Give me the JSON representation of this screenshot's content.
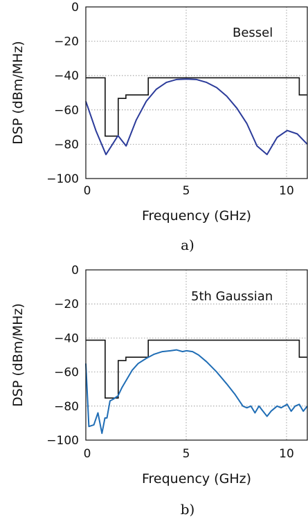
{
  "colors": {
    "bessel": "#2b3b9a",
    "gaussian": "#1f6db5",
    "mask": "#111111"
  },
  "chart_data": [
    {
      "type": "line",
      "caption": "a)",
      "annotation": "Bessel",
      "xlabel": "Frequency (GHz)",
      "ylabel": "DSP (dBm/MHz)",
      "xlim": [
        0,
        11
      ],
      "ylim": [
        -100,
        0
      ],
      "xticks": [
        0,
        5,
        10
      ],
      "xtick_labels": [
        "0",
        "5",
        "10"
      ],
      "yticks": [
        0,
        -20,
        -40,
        -60,
        -80,
        -100
      ],
      "ytick_labels": [
        "0",
        "−20",
        "−40",
        "−60",
        "−80",
        "−100"
      ],
      "grid": true,
      "series": [
        {
          "key": "mask",
          "x": [
            0,
            0.96,
            0.96,
            1.61,
            1.61,
            1.99,
            1.99,
            3.1,
            3.1,
            10.6,
            10.6,
            10.98
          ],
          "y": [
            -41.3,
            -41.3,
            -75.3,
            -75.3,
            -53.3,
            -53.3,
            -51.3,
            -51.3,
            -41.3,
            -41.3,
            -51.3,
            -51.3
          ]
        },
        {
          "key": "bessel",
          "x": [
            0,
            0.5,
            1.0,
            1.6,
            2.0,
            2.5,
            3.0,
            3.5,
            4.0,
            4.5,
            5.0,
            5.5,
            6.0,
            6.5,
            7.0,
            7.5,
            8.0,
            8.5,
            9.0,
            9.5,
            10.0,
            10.5,
            11.0
          ],
          "y": [
            -55,
            -72,
            -86,
            -75,
            -81,
            -66,
            -55,
            -48,
            -44,
            -42.3,
            -42,
            -42.3,
            -44,
            -47,
            -52,
            -59,
            -68,
            -81,
            -86,
            -76,
            -72,
            -74,
            -80
          ]
        }
      ]
    },
    {
      "type": "line",
      "caption": "b)",
      "annotation": "5th Gaussian",
      "xlabel": "Frequency (GHz)",
      "ylabel": "DSP (dBm/MHz)",
      "xlim": [
        0,
        11
      ],
      "ylim": [
        -100,
        0
      ],
      "xticks": [
        0,
        5,
        10
      ],
      "xtick_labels": [
        "0",
        "5",
        "10"
      ],
      "yticks": [
        0,
        -20,
        -40,
        -60,
        -80,
        -100
      ],
      "ytick_labels": [
        "0",
        "−20",
        "−40",
        "−60",
        "−80",
        "−100"
      ],
      "grid": true,
      "series": [
        {
          "key": "mask",
          "x": [
            0,
            0.96,
            0.96,
            1.61,
            1.61,
            1.99,
            1.99,
            3.1,
            3.1,
            10.6,
            10.6,
            10.98
          ],
          "y": [
            -41.3,
            -41.3,
            -75.3,
            -75.3,
            -53.3,
            -53.3,
            -51.3,
            -51.3,
            -41.3,
            -41.3,
            -51.3,
            -51.3
          ]
        },
        {
          "key": "gaussian",
          "x": [
            0,
            0.15,
            0.4,
            0.6,
            0.8,
            0.95,
            1.05,
            1.2,
            1.35,
            1.6,
            1.8,
            2.0,
            2.3,
            2.6,
            3.0,
            3.4,
            3.8,
            4.2,
            4.5,
            4.8,
            5.0,
            5.3,
            5.6,
            6.0,
            6.5,
            7.0,
            7.4,
            7.8,
            8.0,
            8.2,
            8.4,
            8.6,
            8.8,
            9.0,
            9.2,
            9.5,
            9.7,
            10.0,
            10.2,
            10.4,
            10.6,
            10.8,
            11.0
          ],
          "y": [
            -55,
            -92,
            -91,
            -84,
            -96,
            -87,
            -87,
            -77,
            -76,
            -74,
            -69,
            -65,
            -59,
            -55,
            -52,
            -49.5,
            -48,
            -47.5,
            -47,
            -48,
            -47.5,
            -48,
            -50,
            -54,
            -60,
            -67,
            -73,
            -80,
            -81,
            -80,
            -84,
            -80,
            -83,
            -86,
            -83,
            -80,
            -81,
            -79,
            -83,
            -80,
            -79,
            -83,
            -80
          ]
        }
      ]
    }
  ]
}
